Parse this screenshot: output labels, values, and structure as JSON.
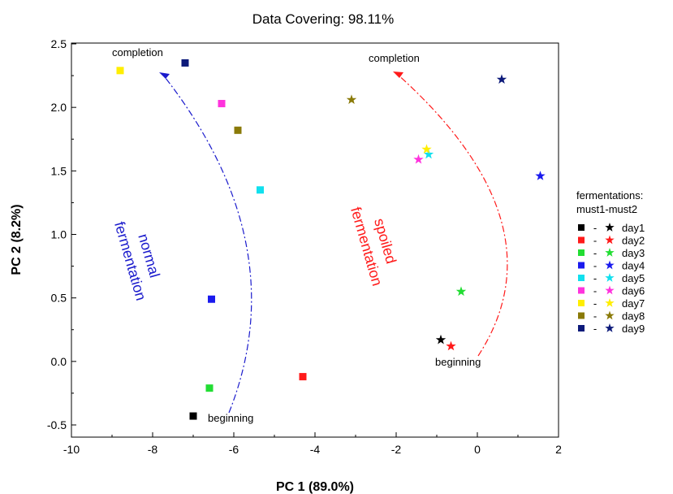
{
  "chart_data": {
    "type": "scatter",
    "title": "Data Covering: 98.11%",
    "xlabel": "PC 1 (89.0%)",
    "ylabel": "PC 2 (8.2%)",
    "xlim": [
      -10,
      2
    ],
    "ylim": [
      -0.6,
      2.5
    ],
    "xticks": [
      -10,
      -8,
      -6,
      -4,
      -2,
      0,
      2
    ],
    "yticks": [
      -0.5,
      0.0,
      0.5,
      1.0,
      1.5,
      2.0,
      2.5
    ],
    "xtick_labels": [
      "-10",
      "-8",
      "-6",
      "-4",
      "-2",
      "0",
      "2"
    ],
    "ytick_labels": [
      "-0.5",
      "0.0",
      "0.5",
      "1.0",
      "1.5",
      "2.0",
      "2.5"
    ],
    "grid": false,
    "legend_position": "right, outside plot",
    "legend_title": [
      "fermentations:",
      "must1-must2"
    ],
    "legend_separator": "-",
    "series": [
      {
        "name": "day1",
        "color": "#000000",
        "must1": [
          -7.0,
          -0.43
        ],
        "must2": [
          -0.9,
          0.17
        ]
      },
      {
        "name": "day2",
        "color": "#ff1a1a",
        "must1": [
          -4.3,
          -0.12
        ],
        "must2": [
          -0.65,
          0.12
        ]
      },
      {
        "name": "day3",
        "color": "#22dd33",
        "must1": [
          -6.6,
          -0.21
        ],
        "must2": [
          -0.4,
          0.55
        ]
      },
      {
        "name": "day4",
        "color": "#1a1aee",
        "must1": [
          -6.55,
          0.49
        ],
        "must2": [
          1.55,
          1.46
        ]
      },
      {
        "name": "day5",
        "color": "#11e0ee",
        "must1": [
          -5.35,
          1.35
        ],
        "must2": [
          -1.2,
          1.63
        ]
      },
      {
        "name": "day6",
        "color": "#ff33dd",
        "must1": [
          -6.3,
          2.03
        ],
        "must2": [
          -1.45,
          1.59
        ]
      },
      {
        "name": "day7",
        "color": "#ffee00",
        "must1": [
          -8.8,
          2.29
        ],
        "must2": [
          -1.25,
          1.67
        ]
      },
      {
        "name": "day8",
        "color": "#8a7a08",
        "must1": [
          -5.9,
          1.82
        ],
        "must2": [
          -3.1,
          2.06
        ]
      },
      {
        "name": "day9",
        "color": "#0d1a7a",
        "must1": [
          -7.2,
          2.35
        ],
        "must2": [
          0.6,
          2.22
        ]
      }
    ],
    "annotations": {
      "normal": {
        "lines": [
          "normal",
          "fermentation"
        ],
        "color": "#1a1acc"
      },
      "spoiled": {
        "lines": [
          "spoiled",
          "fermentation"
        ],
        "color": "#ff1a1a"
      },
      "completion_left": "completion",
      "completion_right": "completion",
      "beginning_left": "beginning",
      "beginning_right": "beginning"
    }
  }
}
